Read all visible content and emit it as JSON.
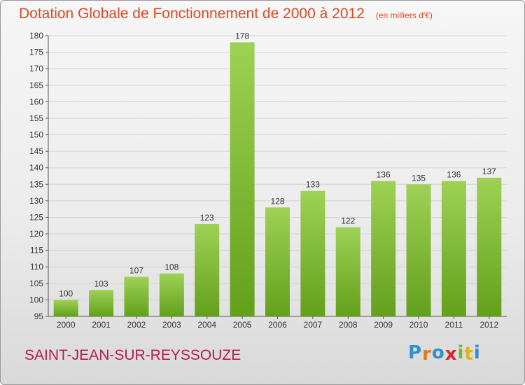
{
  "header": {
    "title": "Dotation Globale de Fonctionnement de 2000 à 2012",
    "unit_note": "(en milliers d'€)"
  },
  "footer": {
    "commune": "SAINT-JEAN-SUR-REYSSOUZE",
    "logo_text": "Proxiti",
    "logo_letters": [
      "P",
      "r",
      "o",
      "x",
      "i",
      "t",
      "i"
    ],
    "logo_colors": [
      "#2f8fd0",
      "#e07a1c",
      "#2f8fd0",
      "#d8262c",
      "#79b530",
      "#e0b21c",
      "#2f8fd0"
    ]
  },
  "colors": {
    "bar_light": "#9ed155",
    "bar_dark": "#62a01a",
    "title": "#d94a24",
    "commune": "#b41e50"
  },
  "chart_data": {
    "type": "bar",
    "title": "Dotation Globale de Fonctionnement de 2000 à 2012",
    "subtitle": "(en milliers d'€)",
    "categories": [
      "2000",
      "2001",
      "2002",
      "2003",
      "2004",
      "2005",
      "2006",
      "2007",
      "2008",
      "2009",
      "2010",
      "2011",
      "2012"
    ],
    "values": [
      100,
      103,
      107,
      108,
      123,
      178,
      128,
      133,
      122,
      136,
      135,
      136,
      137
    ],
    "ylim": [
      95,
      180
    ],
    "yticks": [
      95,
      100,
      105,
      110,
      115,
      120,
      125,
      130,
      135,
      140,
      145,
      150,
      155,
      160,
      165,
      170,
      175,
      180
    ],
    "grid": true,
    "xlabel": "",
    "ylabel": ""
  }
}
